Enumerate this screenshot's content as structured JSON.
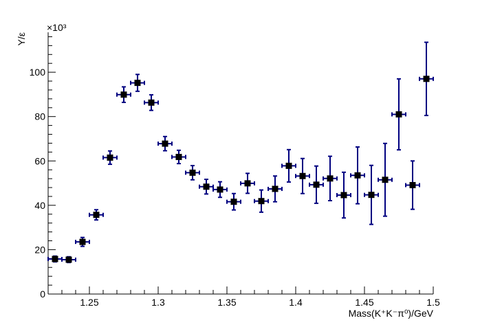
{
  "chart_data": {
    "type": "scatter",
    "xlabel": "Mass(K⁺K⁻π⁰)/GeV",
    "ylabel": "Y/ε",
    "y_multiplier": "×10³",
    "xlim": [
      1.22,
      1.5
    ],
    "ylim": [
      0,
      118
    ],
    "x_ticks": [
      1.25,
      1.3,
      1.35,
      1.4,
      1.45,
      1.5
    ],
    "x_tick_labels": [
      "1.25",
      "1.3",
      "1.35",
      "1.4",
      "1.45",
      "1.5"
    ],
    "y_ticks": [
      0,
      20,
      40,
      60,
      80,
      100
    ],
    "y_tick_labels": [
      "0",
      "20",
      "40",
      "60",
      "80",
      "100"
    ],
    "grid": false,
    "x_bin_half_width": 0.005,
    "marker_color": "#000000",
    "error_bar_color": "#000080",
    "series": [
      {
        "x": [
          1.225,
          1.235,
          1.245,
          1.255,
          1.265,
          1.275,
          1.285,
          1.295,
          1.305,
          1.315,
          1.325,
          1.335,
          1.345,
          1.355,
          1.365,
          1.375,
          1.385,
          1.395,
          1.405,
          1.415,
          1.425,
          1.435,
          1.445,
          1.455,
          1.465,
          1.475,
          1.485,
          1.495
        ],
        "y": [
          15.8,
          15.5,
          23.5,
          35.7,
          61.5,
          89.9,
          95.2,
          86.3,
          67.8,
          61.8,
          54.7,
          48.4,
          47.1,
          41.6,
          49.9,
          41.9,
          47.4,
          57.8,
          53.2,
          49.3,
          52.1,
          44.6,
          53.5,
          44.7,
          51.5,
          81.0,
          49.1,
          97.0
        ],
        "y_err": [
          1.3,
          1.3,
          2.0,
          2.3,
          3.0,
          3.5,
          3.8,
          3.5,
          3.2,
          3.0,
          3.2,
          3.3,
          3.5,
          3.7,
          4.5,
          5.0,
          5.8,
          7.3,
          7.9,
          8.4,
          10.0,
          10.3,
          12.8,
          13.3,
          16.4,
          16.0,
          10.9,
          16.5
        ]
      }
    ]
  }
}
